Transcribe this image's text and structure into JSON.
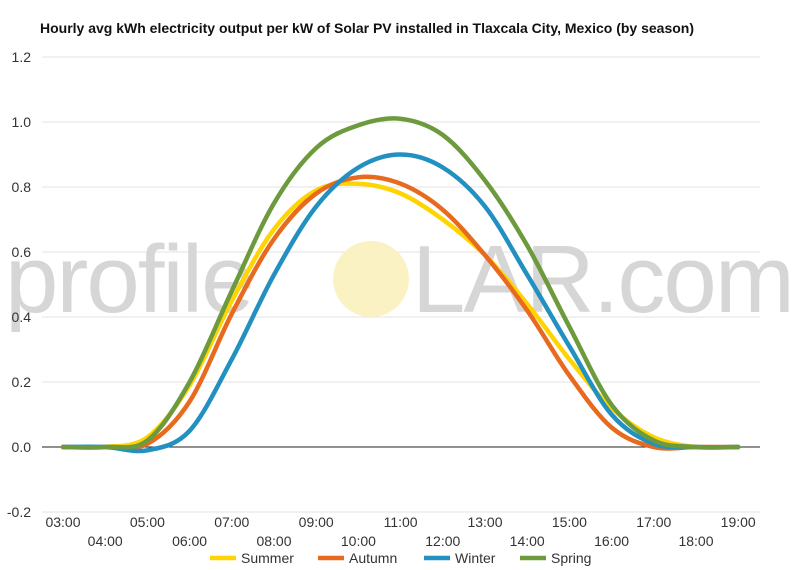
{
  "chart_data": {
    "type": "line",
    "title": "Hourly avg kWh electricity output per kW of Solar PV installed in Tlaxcala City, Mexico (by season)",
    "watermark": {
      "left": "profile",
      "right": "LAR.com"
    },
    "xlabel": "",
    "ylabel": "",
    "x": [
      "03:00",
      "04:00",
      "05:00",
      "06:00",
      "07:00",
      "08:00",
      "09:00",
      "10:00",
      "11:00",
      "12:00",
      "13:00",
      "14:00",
      "15:00",
      "16:00",
      "17:00",
      "18:00",
      "19:00"
    ],
    "ylim": [
      -0.2,
      1.2
    ],
    "yticks": [
      "-0.2",
      "0.0",
      "0.2",
      "0.4",
      "0.6",
      "0.8",
      "1.0",
      "1.2"
    ],
    "grid": true,
    "legend_position": "bottom",
    "series": [
      {
        "name": "Summer",
        "color": "#FFD400",
        "values": [
          0.0,
          0.0,
          0.03,
          0.19,
          0.45,
          0.67,
          0.79,
          0.81,
          0.78,
          0.7,
          0.59,
          0.44,
          0.27,
          0.12,
          0.03,
          0.0,
          0.0
        ]
      },
      {
        "name": "Autumn",
        "color": "#E86A1F",
        "values": [
          0.0,
          0.0,
          0.01,
          0.14,
          0.41,
          0.64,
          0.78,
          0.83,
          0.81,
          0.73,
          0.59,
          0.42,
          0.22,
          0.06,
          0.0,
          0.0,
          0.0
        ]
      },
      {
        "name": "Winter",
        "color": "#2290C0",
        "values": [
          0.0,
          0.0,
          -0.01,
          0.05,
          0.27,
          0.53,
          0.74,
          0.86,
          0.9,
          0.86,
          0.74,
          0.53,
          0.31,
          0.1,
          0.01,
          0.0,
          0.0
        ]
      },
      {
        "name": "Spring",
        "color": "#6E9A3E",
        "values": [
          0.0,
          0.0,
          0.02,
          0.2,
          0.48,
          0.75,
          0.92,
          0.99,
          1.01,
          0.96,
          0.82,
          0.62,
          0.37,
          0.13,
          0.02,
          0.0,
          0.0
        ]
      }
    ]
  }
}
